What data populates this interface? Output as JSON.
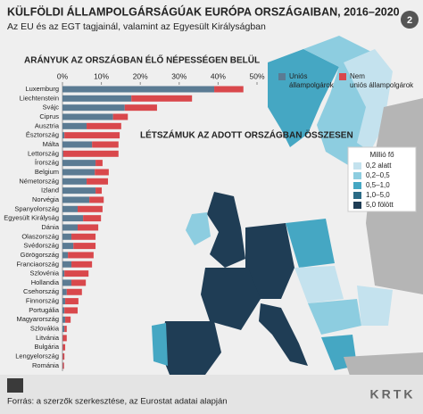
{
  "chart_data": {
    "type": "bar",
    "orientation": "horizontal",
    "stacked": true,
    "title": "KÜLFÖLDI ÁLLAMPOLGÁRSÁGÚAK EURÓPA ORSZÁGAIBAN, 2016–2020",
    "subtitle": "Az EU és az EGT tagjainál, valamint az Egyesült Királyságban",
    "chart_title": "ARÁNYUK AZ ORSZÁGBAN ÉLŐ NÉPESSÉGEN BELÜL",
    "categories": [
      "Luxemburg",
      "Liechtenstein",
      "Svájc",
      "Ciprus",
      "Ausztria",
      "Észtország",
      "Málta",
      "Lettország",
      "Írország",
      "Belgium",
      "Németország",
      "Izland",
      "Norvégia",
      "Spanyolország",
      "Egyesült Királyság",
      "Dánia",
      "Olaszország",
      "Svédország",
      "Görögország",
      "Franciaország",
      "Szlovénia",
      "Hollandia",
      "Csehország",
      "Finnország",
      "Portugália",
      "Magyarország",
      "Szlovákia",
      "Litvánia",
      "Bulgária",
      "Lengyelország",
      "Románia"
    ],
    "series": [
      {
        "name": "Uniós állampolgárok",
        "color": "#5b7b93",
        "values": [
          39,
          17.7,
          16,
          13,
          6.2,
          0.5,
          7.6,
          0.2,
          8.5,
          8.3,
          6.2,
          8.5,
          6.9,
          3.9,
          5.3,
          3.9,
          2.3,
          2.8,
          1.4,
          2.3,
          0.5,
          2.3,
          1.1,
          0.7,
          0.5,
          0.7,
          0.5,
          0.1,
          0.1,
          0.1,
          0.1
        ]
      },
      {
        "name": "Nem uniós állampolgárok",
        "color": "#d9484c",
        "values": [
          7.5,
          15.6,
          8.3,
          3.8,
          8.9,
          14.2,
          6.8,
          14.2,
          1.8,
          3.6,
          5.5,
          1.6,
          3.7,
          6.4,
          4.6,
          5.3,
          6.2,
          5.7,
          6.6,
          5.3,
          6.2,
          3.7,
          3.9,
          3.4,
          3.4,
          1.4,
          0.6,
          1.0,
          0.6,
          0.4,
          0.3
        ]
      }
    ],
    "xlim": [
      0,
      50
    ],
    "xticks": [
      {
        "value": 0,
        "label": "0%"
      },
      {
        "value": 10,
        "label": "10%"
      },
      {
        "value": 20,
        "label": "20%"
      },
      {
        "value": 30,
        "label": "30%"
      },
      {
        "value": 40,
        "label": "40%"
      },
      {
        "value": 50,
        "label": "50%"
      }
    ],
    "map": {
      "title": "LÉTSZÁMUK AZ ADOTT ORSZÁGBAN ÖSSZESEN",
      "legend_title": "Millió fő",
      "legend": [
        {
          "label": "0,2 alatt",
          "color": "#c4e2ee"
        },
        {
          "label": "0,2–0,5",
          "color": "#8dcde0"
        },
        {
          "label": "0,5–1,0",
          "color": "#45a7c3"
        },
        {
          "label": "1,0–5,0",
          "color": "#2b6b86"
        },
        {
          "label": "5,0 fölött",
          "color": "#1f3d55"
        }
      ]
    },
    "source": "Forrás: a szerzők szerkesztése, az Eurostat adatai alapján",
    "page_number": "2",
    "logo": "KRTK"
  }
}
